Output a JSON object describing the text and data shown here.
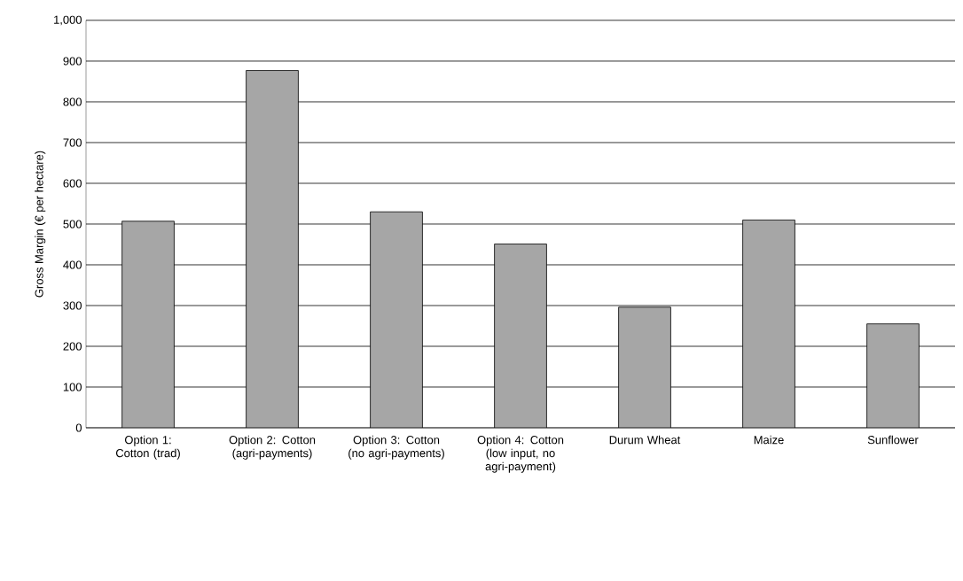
{
  "chart_data": {
    "type": "bar",
    "ylabel": "Gross Margin (€ per hectare)",
    "categories": [
      "Option 1: Cotton (trad)",
      "Option 2: Cotton (agri-payments)",
      "Option 3: Cotton (no agri-payments)",
      "Option 4: Cotton (low input, no agri-payment)",
      "Durum Wheat",
      "Maize",
      "Sunflower"
    ],
    "values": [
      507,
      877,
      530,
      451,
      296,
      510,
      255
    ],
    "color": "#a6a6a6",
    "ylim": [
      0,
      1000
    ],
    "yticks": [
      0,
      100,
      200,
      300,
      400,
      500,
      600,
      700,
      800,
      900,
      {
        "value": 1000,
        "label": "1,000"
      }
    ],
    "grid": "y"
  }
}
